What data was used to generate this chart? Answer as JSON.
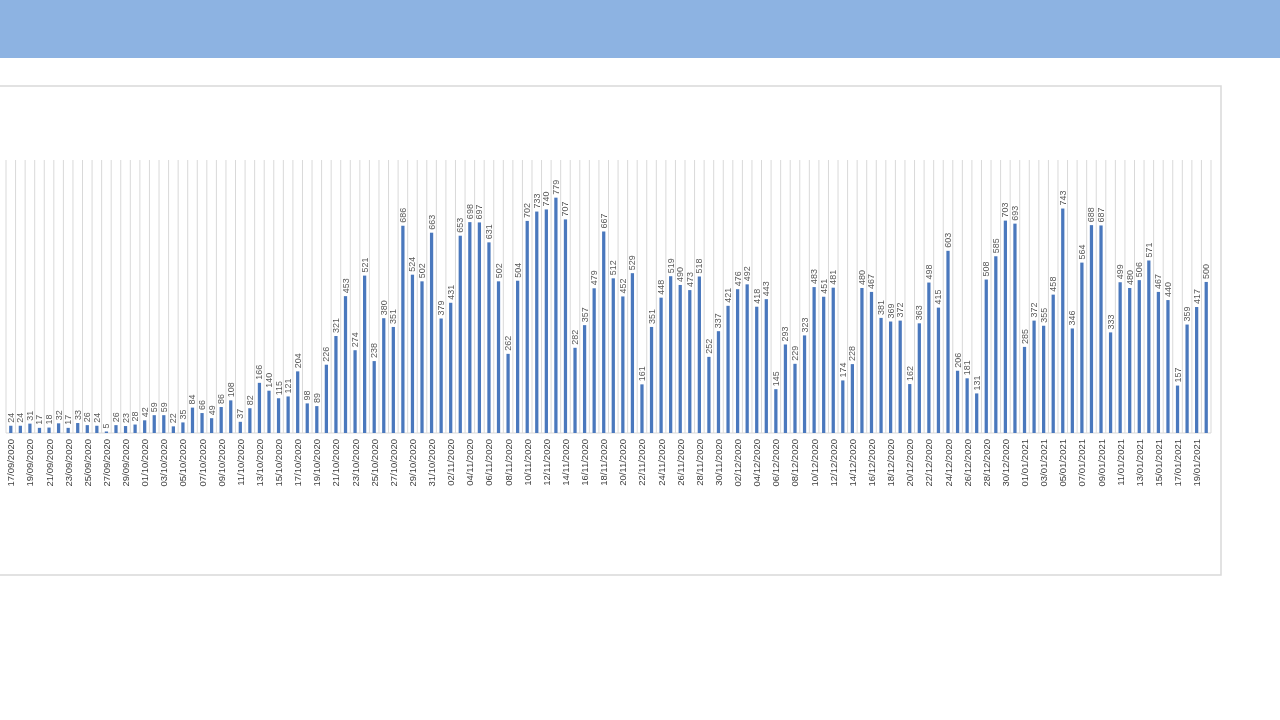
{
  "chart_data": {
    "type": "bar",
    "color": "#4a78bd",
    "grid": "x",
    "data_labels": true,
    "categories": [
      "17/09/2020",
      null,
      "19/09/2020",
      null,
      "21/09/2020",
      null,
      "23/09/2020",
      null,
      "25/09/2020",
      null,
      "27/09/2020",
      null,
      "29/09/2020",
      null,
      "01/10/2020",
      null,
      "03/10/2020",
      null,
      "05/10/2020",
      null,
      "07/10/2020",
      null,
      "09/10/2020",
      null,
      "11/10/2020",
      null,
      "13/10/2020",
      null,
      "15/10/2020",
      null,
      "17/10/2020",
      null,
      "19/10/2020",
      null,
      "21/10/2020",
      null,
      "23/10/2020",
      null,
      "25/10/2020",
      null,
      "27/10/2020",
      null,
      "29/10/2020",
      null,
      "31/10/2020",
      null,
      "02/11/2020",
      null,
      "04/11/2020",
      null,
      "06/11/2020",
      null,
      "08/11/2020",
      null,
      "10/11/2020",
      null,
      "12/11/2020",
      null,
      "14/11/2020",
      null,
      "16/11/2020",
      null,
      "18/11/2020",
      null,
      "20/11/2020",
      null,
      "22/11/2020",
      null,
      "24/11/2020",
      null,
      "26/11/2020",
      null,
      "28/11/2020",
      null,
      "30/11/2020",
      null,
      "02/12/2020",
      null,
      "04/12/2020",
      null,
      "06/12/2020",
      null,
      "08/12/2020",
      null,
      "10/12/2020",
      null,
      "12/12/2020",
      null,
      "14/12/2020",
      null,
      "16/12/2020",
      null,
      "18/12/2020",
      null,
      "20/12/2020",
      null,
      "22/12/2020",
      null,
      "24/12/2020",
      null,
      "26/12/2020",
      null,
      "28/12/2020",
      null,
      "30/12/2020",
      null,
      "01/01/2021",
      null,
      "03/01/2021",
      null,
      "05/01/2021",
      null,
      "07/01/2021",
      null,
      "09/01/2021",
      null,
      "11/01/2021",
      null,
      "13/01/2021",
      null,
      "15/01/2021",
      null,
      "17/01/2021",
      null,
      "19/01/2021",
      null
    ],
    "values": [
      24,
      24,
      31,
      17,
      18,
      32,
      17,
      33,
      26,
      24,
      5,
      26,
      23,
      28,
      42,
      59,
      59,
      22,
      35,
      84,
      66,
      49,
      86,
      108,
      37,
      82,
      166,
      140,
      115,
      121,
      204,
      98,
      89,
      226,
      321,
      453,
      274,
      521,
      238,
      380,
      351,
      686,
      524,
      502,
      663,
      379,
      431,
      653,
      698,
      697,
      631,
      502,
      262,
      504,
      702,
      733,
      740,
      779,
      707,
      282,
      357,
      479,
      667,
      512,
      452,
      529,
      161,
      351,
      448,
      519,
      490,
      473,
      518,
      252,
      337,
      421,
      476,
      492,
      418,
      443,
      145,
      293,
      229,
      323,
      483,
      451,
      481,
      174,
      228,
      480,
      467,
      381,
      369,
      372,
      162,
      363,
      498,
      415,
      603,
      206,
      181,
      131,
      508,
      585,
      703,
      693,
      285,
      372,
      355,
      458,
      743,
      346,
      564,
      688,
      687,
      333,
      499,
      480,
      506,
      571,
      467,
      440,
      157,
      359,
      417,
      500
    ]
  }
}
